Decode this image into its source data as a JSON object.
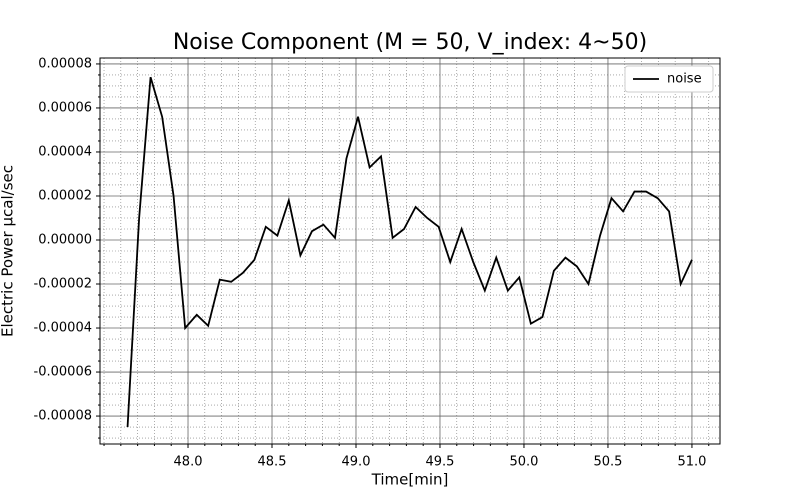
{
  "chart_data": {
    "type": "line",
    "title": "Noise Component (M = 50, V_index: 4~50)",
    "xlabel": "Time[min]",
    "ylabel": "Electric Power µcal/sec",
    "legend": "upper right",
    "grid": true,
    "x": [
      47.64,
      47.709,
      47.777,
      47.846,
      47.914,
      47.983,
      48.052,
      48.12,
      48.189,
      48.257,
      48.326,
      48.395,
      48.463,
      48.532,
      48.6,
      48.669,
      48.738,
      48.806,
      48.875,
      48.943,
      49.012,
      49.081,
      49.149,
      49.218,
      49.286,
      49.355,
      49.424,
      49.492,
      49.561,
      49.629,
      49.698,
      49.767,
      49.835,
      49.904,
      49.972,
      50.041,
      50.11,
      50.178,
      50.247,
      50.315,
      50.384,
      50.453,
      50.521,
      50.59,
      50.658,
      50.727,
      50.796,
      50.864,
      50.933,
      51.0
    ],
    "series": [
      {
        "name": "noise",
        "color": "#000000",
        "values": [
          -8.5e-05,
          1e-05,
          7.4e-05,
          5.6e-05,
          2e-05,
          -4e-05,
          -3.4e-05,
          -3.9e-05,
          -1.8e-05,
          -1.9e-05,
          -1.5e-05,
          -9e-06,
          6e-06,
          2e-06,
          1.8e-05,
          -7e-06,
          4e-06,
          7e-06,
          1e-06,
          3.7e-05,
          5.6e-05,
          3.3e-05,
          3.8e-05,
          1e-06,
          5e-06,
          1.5e-05,
          1e-05,
          6e-06,
          -1e-05,
          5e-06,
          -1e-05,
          -2.3e-05,
          -8e-06,
          -2.3e-05,
          -1.7e-05,
          -3.8e-05,
          -3.5e-05,
          -1.4e-05,
          -8e-06,
          -1.2e-05,
          -2e-05,
          2e-06,
          1.9e-05,
          1.3e-05,
          2.2e-05,
          2.2e-05,
          1.9e-05,
          1.3e-05,
          -2e-05,
          -9e-06
        ]
      }
    ],
    "xlim": [
      47.476,
      51.167
    ],
    "ylim": [
      -9.27e-05,
      8.27e-05
    ],
    "xticks": [
      {
        "value": 48,
        "label": "48.0"
      },
      48.5,
      {
        "value": 49,
        "label": "49.0"
      },
      49.5,
      {
        "value": 50,
        "label": "50.0"
      },
      50.5,
      {
        "value": 51,
        "label": "51.0"
      }
    ],
    "yticks": [
      -8e-05,
      -6e-05,
      -4e-05,
      -2e-05,
      {
        "value": 0,
        "label": "0.00000"
      },
      2e-05,
      4e-05,
      6e-05,
      8e-05
    ],
    "xminorticks": [
      47.5,
      47.6,
      47.7,
      47.8,
      47.9,
      48.1,
      48.2,
      48.3,
      48.4,
      48.6,
      48.7,
      48.8,
      48.9,
      49.1,
      49.2,
      49.3,
      49.4,
      49.6,
      49.7,
      49.8,
      49.9,
      50.1,
      50.2,
      50.3,
      50.4,
      50.6,
      50.7,
      50.8,
      50.9,
      51.1
    ],
    "yminorticks": [
      -9e-05,
      -8.5e-05,
      -7.5e-05,
      -7e-05,
      -6.5e-05,
      -5.5e-05,
      -5e-05,
      -4.5e-05,
      -3.5e-05,
      -3e-05,
      -2.5e-05,
      -1.5e-05,
      -1e-05,
      -5e-06,
      5e-06,
      1e-05,
      1.5e-05,
      2.5e-05,
      3e-05,
      3.5e-05,
      4.5e-05,
      5e-05,
      5.5e-05,
      6.5e-05,
      7e-05,
      7.5e-05
    ]
  }
}
